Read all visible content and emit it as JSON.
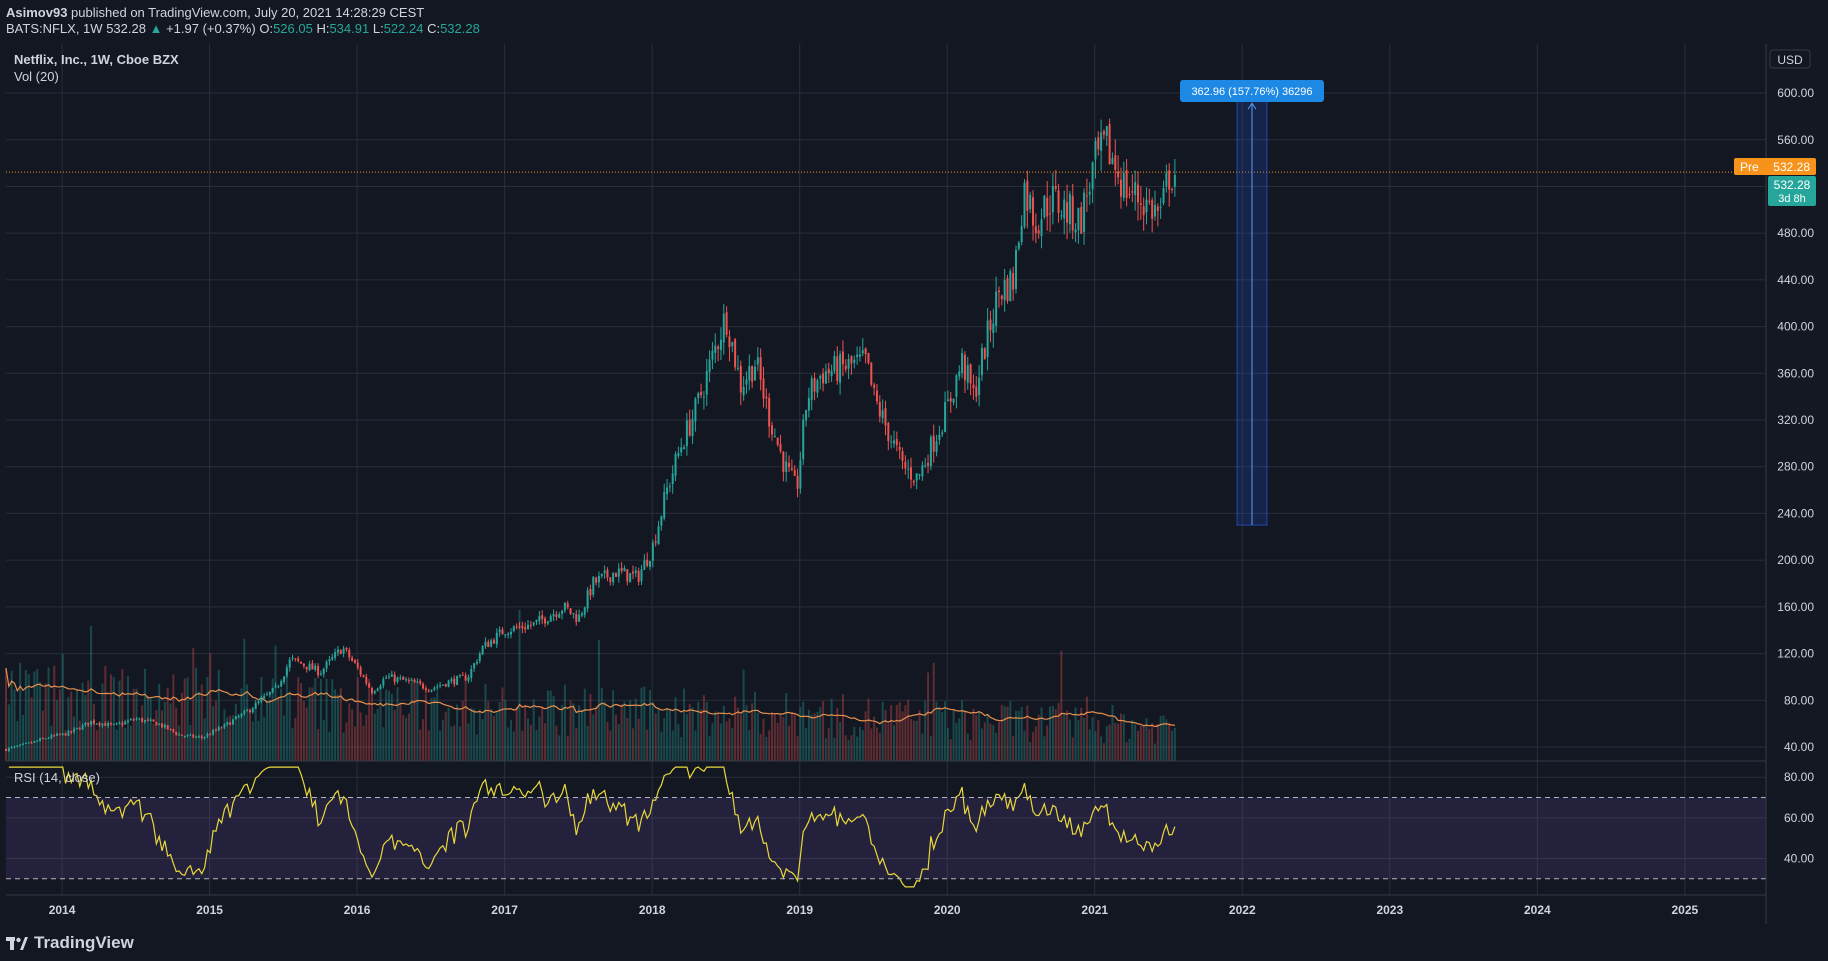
{
  "header": {
    "author": "Asimov93",
    "published_text": "published on TradingView.com, July 20, 2021 14:28:29 CEST",
    "symbol": "BATS:NFLX, 1W",
    "last": "532.28",
    "change": "+1.97 (+0.37%)",
    "open_label": "O:",
    "open": "526.05",
    "high_label": "H:",
    "high": "534.91",
    "low_label": "L:",
    "low": "522.24",
    "close_label": "C:",
    "close": "532.28"
  },
  "legend": {
    "title": "Netflix, Inc., 1W, Cboe BZX",
    "volume": "Vol (20)",
    "rsi": "RSI (14, close)"
  },
  "price_scale": {
    "currency": "USD",
    "pre_label": "Pre",
    "pre_value": "532.28",
    "last_value": "532.28",
    "countdown": "3d 8h"
  },
  "measure_label": "362.96 (157.76%) 36296",
  "footer": {
    "brand": "TradingView"
  },
  "colors": {
    "up": "#26a69a",
    "down": "#ef5350",
    "volume_ma": "#e8914c",
    "rsi_line": "#e9d83c",
    "rsi_band": "#7e57c2",
    "measure": "#2962ff",
    "pre_badge": "#f7931a",
    "last_badge": "#26a69a"
  },
  "chart_data": {
    "type": "candlestick",
    "title": "Netflix, Inc., 1W, Cboe BZX",
    "x_ticks": [
      "2014",
      "2015",
      "2016",
      "2017",
      "2018",
      "2019",
      "2020",
      "2021",
      "2022",
      "2023",
      "2024",
      "2025"
    ],
    "y_ticks": [
      40,
      80,
      120,
      160,
      200,
      240,
      280,
      320,
      360,
      400,
      440,
      480,
      520,
      560,
      600
    ],
    "y_tick_labels": [
      "40.00",
      "80.00",
      "120.00",
      "160.00",
      "200.00",
      "240.00",
      "280.00",
      "320.00",
      "360.00",
      "400.00",
      "440.00",
      "480.00",
      "520.00",
      "560.00",
      "600.00"
    ],
    "ylim": [
      28,
      642
    ],
    "price_path": [
      {
        "date": 2013.62,
        "price": 38
      },
      {
        "date": 2013.75,
        "price": 42
      },
      {
        "date": 2013.9,
        "price": 48
      },
      {
        "date": 2014.05,
        "price": 52
      },
      {
        "date": 2014.2,
        "price": 62
      },
      {
        "date": 2014.35,
        "price": 58
      },
      {
        "date": 2014.5,
        "price": 64
      },
      {
        "date": 2014.65,
        "price": 60
      },
      {
        "date": 2014.8,
        "price": 50
      },
      {
        "date": 2014.95,
        "price": 48
      },
      {
        "date": 2015.1,
        "price": 58
      },
      {
        "date": 2015.25,
        "price": 70
      },
      {
        "date": 2015.35,
        "price": 80
      },
      {
        "date": 2015.45,
        "price": 90
      },
      {
        "date": 2015.55,
        "price": 115
      },
      {
        "date": 2015.65,
        "price": 110
      },
      {
        "date": 2015.75,
        "price": 104
      },
      {
        "date": 2015.9,
        "price": 125
      },
      {
        "date": 2016.0,
        "price": 108
      },
      {
        "date": 2016.1,
        "price": 88
      },
      {
        "date": 2016.2,
        "price": 100
      },
      {
        "date": 2016.35,
        "price": 96
      },
      {
        "date": 2016.5,
        "price": 90
      },
      {
        "date": 2016.6,
        "price": 95
      },
      {
        "date": 2016.75,
        "price": 100
      },
      {
        "date": 2016.85,
        "price": 125
      },
      {
        "date": 2017.0,
        "price": 140
      },
      {
        "date": 2017.2,
        "price": 145
      },
      {
        "date": 2017.4,
        "price": 160
      },
      {
        "date": 2017.5,
        "price": 150
      },
      {
        "date": 2017.6,
        "price": 180
      },
      {
        "date": 2017.75,
        "price": 190
      },
      {
        "date": 2017.9,
        "price": 185
      },
      {
        "date": 2018.0,
        "price": 210
      },
      {
        "date": 2018.1,
        "price": 260
      },
      {
        "date": 2018.2,
        "price": 300
      },
      {
        "date": 2018.3,
        "price": 330
      },
      {
        "date": 2018.4,
        "price": 370
      },
      {
        "date": 2018.5,
        "price": 410
      },
      {
        "date": 2018.6,
        "price": 350
      },
      {
        "date": 2018.7,
        "price": 370
      },
      {
        "date": 2018.8,
        "price": 320
      },
      {
        "date": 2018.9,
        "price": 280
      },
      {
        "date": 2018.98,
        "price": 260
      },
      {
        "date": 2019.05,
        "price": 340
      },
      {
        "date": 2019.15,
        "price": 360
      },
      {
        "date": 2019.3,
        "price": 365
      },
      {
        "date": 2019.45,
        "price": 370
      },
      {
        "date": 2019.5,
        "price": 340
      },
      {
        "date": 2019.6,
        "price": 310
      },
      {
        "date": 2019.7,
        "price": 280
      },
      {
        "date": 2019.8,
        "price": 270
      },
      {
        "date": 2019.9,
        "price": 300
      },
      {
        "date": 2020.0,
        "price": 330
      },
      {
        "date": 2020.1,
        "price": 370
      },
      {
        "date": 2020.18,
        "price": 340
      },
      {
        "date": 2020.25,
        "price": 380
      },
      {
        "date": 2020.35,
        "price": 430
      },
      {
        "date": 2020.45,
        "price": 440
      },
      {
        "date": 2020.52,
        "price": 520
      },
      {
        "date": 2020.6,
        "price": 490
      },
      {
        "date": 2020.7,
        "price": 510
      },
      {
        "date": 2020.8,
        "price": 500
      },
      {
        "date": 2020.9,
        "price": 490
      },
      {
        "date": 2021.0,
        "price": 540
      },
      {
        "date": 2021.08,
        "price": 555
      },
      {
        "date": 2021.2,
        "price": 520
      },
      {
        "date": 2021.3,
        "price": 510
      },
      {
        "date": 2021.4,
        "price": 500
      },
      {
        "date": 2021.45,
        "price": 495
      },
      {
        "date": 2021.5,
        "price": 530
      },
      {
        "date": 2021.55,
        "price": 532
      }
    ],
    "measure": {
      "from_price": 230,
      "to_price": 593,
      "change": "362.96 (157.76%) 36296"
    },
    "last_price": 532.28,
    "rsi": {
      "name": "RSI (14, close)",
      "y_ticks": [
        40,
        60,
        80
      ],
      "y_tick_labels": [
        "40.00",
        "60.00",
        "80.00"
      ],
      "upper_band": 70,
      "lower_band": 30,
      "ylim": [
        22,
        88
      ]
    },
    "volume": {
      "name": "Vol (20)"
    },
    "grid": true
  }
}
